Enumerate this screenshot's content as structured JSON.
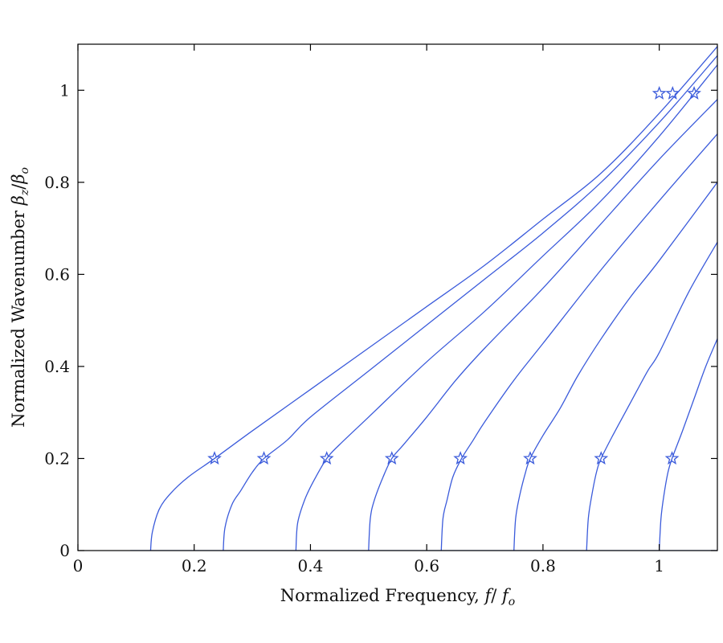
{
  "chart_data": {
    "type": "line",
    "xlabel_prefix": "Normalized Frequency,",
    "xlabel_math": {
      "f": "f",
      "slash": "/",
      "fo_base": "f",
      "fo_sub": "o"
    },
    "ylabel_prefix": "Normalized Wavenumber",
    "ylabel_math": {
      "num_base": "β",
      "num_sub": "z",
      "slash": "/",
      "den_base": "β",
      "den_sub": "o"
    },
    "xlim": [
      0,
      1.1
    ],
    "ylim": [
      0,
      1.1
    ],
    "xticks": [
      0,
      0.2,
      0.4,
      0.6,
      0.8,
      1
    ],
    "xtick_labels": [
      "0",
      "0.2",
      "0.4",
      "0.6",
      "0.8",
      "1"
    ],
    "yticks": [
      0,
      0.2,
      0.4,
      0.6,
      0.8,
      1
    ],
    "ytick_labels": [
      "0",
      "0.2",
      "0.4",
      "0.6",
      "0.8",
      "1"
    ],
    "grid": false,
    "line_color": "#3b5bdb",
    "baseline": {
      "x": [
        0.09,
        1.1
      ],
      "y": [
        0,
        0
      ]
    },
    "series": [
      {
        "cutoff": 0.125,
        "x": [
          0.125,
          0.128,
          0.14,
          0.16,
          0.19,
          0.235,
          0.3,
          0.4,
          0.5,
          0.6,
          0.7,
          0.8,
          0.9,
          1.0,
          1.1
        ],
        "y": [
          0,
          0.04,
          0.09,
          0.125,
          0.16,
          0.2,
          0.26,
          0.35,
          0.44,
          0.53,
          0.62,
          0.72,
          0.82,
          0.95,
          1.095
        ]
      },
      {
        "cutoff": 0.25,
        "x": [
          0.25,
          0.253,
          0.265,
          0.28,
          0.3,
          0.32,
          0.36,
          0.4,
          0.5,
          0.6,
          0.7,
          0.8,
          0.9,
          1.0,
          1.1
        ],
        "y": [
          0,
          0.05,
          0.1,
          0.13,
          0.17,
          0.2,
          0.24,
          0.29,
          0.39,
          0.49,
          0.59,
          0.69,
          0.8,
          0.93,
          1.075
        ]
      },
      {
        "cutoff": 0.375,
        "x": [
          0.375,
          0.378,
          0.39,
          0.405,
          0.428,
          0.45,
          0.5,
          0.6,
          0.7,
          0.8,
          0.9,
          1.0,
          1.1
        ],
        "y": [
          0,
          0.06,
          0.11,
          0.15,
          0.2,
          0.23,
          0.29,
          0.41,
          0.52,
          0.64,
          0.76,
          0.9,
          1.055
        ]
      },
      {
        "cutoff": 0.5,
        "x": [
          0.5,
          0.503,
          0.51,
          0.525,
          0.54,
          0.56,
          0.6,
          0.65,
          0.7,
          0.8,
          0.9,
          1.0,
          1.1
        ],
        "y": [
          0,
          0.07,
          0.11,
          0.16,
          0.2,
          0.23,
          0.29,
          0.37,
          0.44,
          0.57,
          0.71,
          0.85,
          0.98
        ]
      },
      {
        "cutoff": 0.625,
        "x": [
          0.625,
          0.628,
          0.635,
          0.645,
          0.66,
          0.68,
          0.7,
          0.75,
          0.8,
          0.9,
          1.0,
          1.1
        ],
        "y": [
          0,
          0.07,
          0.11,
          0.16,
          0.2,
          0.24,
          0.28,
          0.37,
          0.45,
          0.61,
          0.76,
          0.905
        ]
      },
      {
        "cutoff": 0.75,
        "x": [
          0.75,
          0.753,
          0.76,
          0.77,
          0.778,
          0.8,
          0.83,
          0.86,
          0.9,
          0.95,
          1.0,
          1.1
        ],
        "y": [
          0,
          0.07,
          0.12,
          0.17,
          0.2,
          0.25,
          0.31,
          0.38,
          0.46,
          0.55,
          0.63,
          0.8
        ]
      },
      {
        "cutoff": 0.875,
        "x": [
          0.875,
          0.878,
          0.884,
          0.892,
          0.9,
          0.92,
          0.95,
          0.98,
          1.0,
          1.05,
          1.1
        ],
        "y": [
          0,
          0.07,
          0.12,
          0.17,
          0.2,
          0.25,
          0.32,
          0.39,
          0.43,
          0.56,
          0.67
        ]
      },
      {
        "cutoff": 1.0,
        "x": [
          1.0,
          1.003,
          1.008,
          1.015,
          1.022,
          1.04,
          1.06,
          1.08,
          1.1
        ],
        "y": [
          0,
          0.07,
          0.12,
          0.17,
          0.2,
          0.26,
          0.33,
          0.4,
          0.46
        ]
      }
    ],
    "markers": [
      {
        "x": 0.235,
        "y": 0.2
      },
      {
        "x": 0.32,
        "y": 0.2
      },
      {
        "x": 0.428,
        "y": 0.2
      },
      {
        "x": 0.54,
        "y": 0.2
      },
      {
        "x": 0.658,
        "y": 0.2
      },
      {
        "x": 0.778,
        "y": 0.2
      },
      {
        "x": 0.9,
        "y": 0.2
      },
      {
        "x": 1.022,
        "y": 0.2
      },
      {
        "x": 1.0,
        "y": 0.993
      },
      {
        "x": 1.023,
        "y": 0.993
      },
      {
        "x": 1.06,
        "y": 0.993
      }
    ]
  }
}
